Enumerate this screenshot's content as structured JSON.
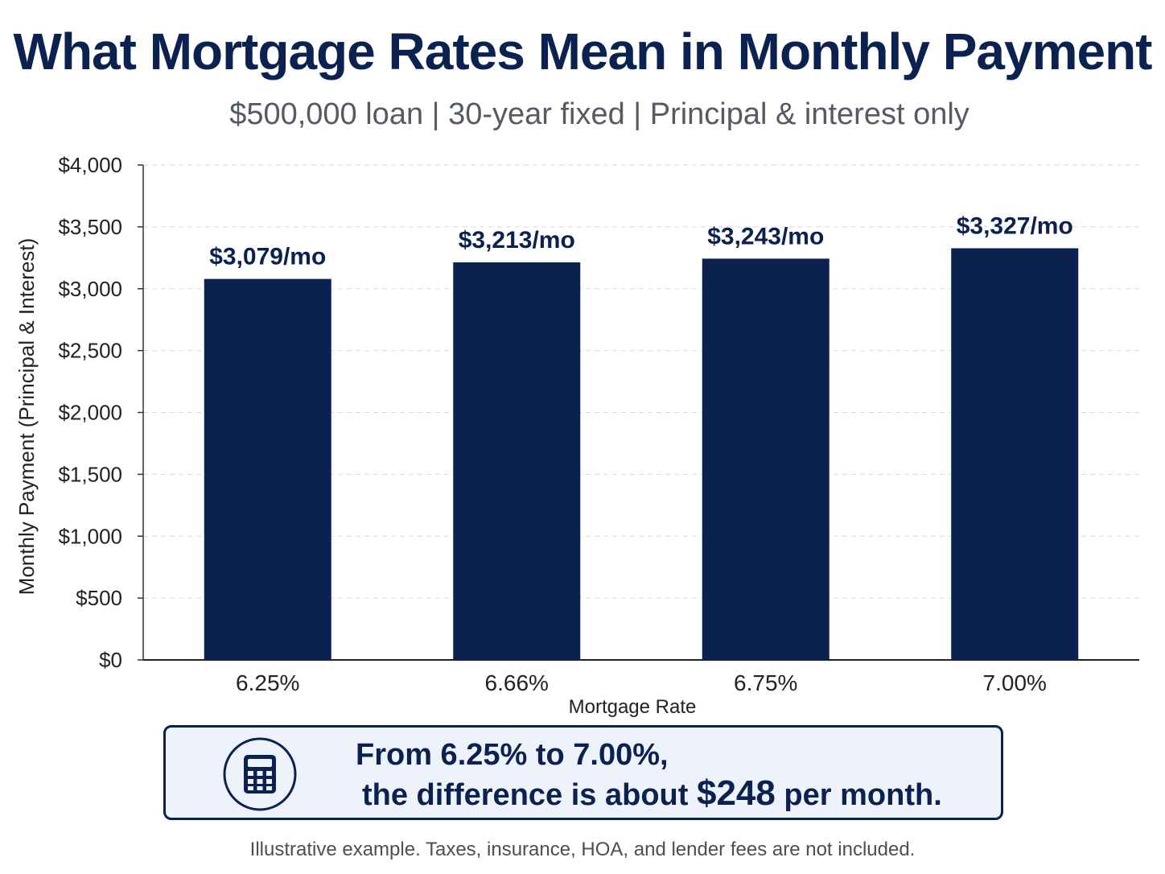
{
  "title": "What Mortgage Rates Mean in Monthly Payment",
  "subtitle": "$500,000 loan | 30-year fixed | Principal & interest only",
  "chart_data": {
    "type": "bar",
    "categories": [
      "6.25%",
      "6.66%",
      "6.75%",
      "7.00%"
    ],
    "values": [
      3079,
      3213,
      3243,
      3327
    ],
    "data_labels": [
      "$3,079/mo",
      "$3,213/mo",
      "$3,243/mo",
      "$3,327/mo"
    ],
    "xlabel": "Mortgage Rate",
    "ylabel": "Monthly Payment (Principal & Interest)",
    "ylim": [
      0,
      4000
    ],
    "yticks": [
      0,
      500,
      1000,
      1500,
      2000,
      2500,
      3000,
      3500,
      4000
    ],
    "ytick_labels": [
      "$0",
      "$500",
      "$1,000",
      "$1,500",
      "$2,000",
      "$2,500",
      "$3,000",
      "$3,500",
      "$4,000"
    ],
    "grid": true,
    "bar_color": "#0b2150"
  },
  "callout": {
    "icon": "calculator-icon",
    "line1": "From 6.25% to 7.00%,",
    "line2_prefix": "the difference is about",
    "amount": "$248",
    "line2_suffix": "per month."
  },
  "footnote": "Illustrative example. Taxes, insurance, HOA, and lender fees are not included.",
  "colors": {
    "primary": "#0b2150",
    "callout_bg": "#eef3fb",
    "grid": "#d9d9d9",
    "subtitle": "#555a63"
  }
}
